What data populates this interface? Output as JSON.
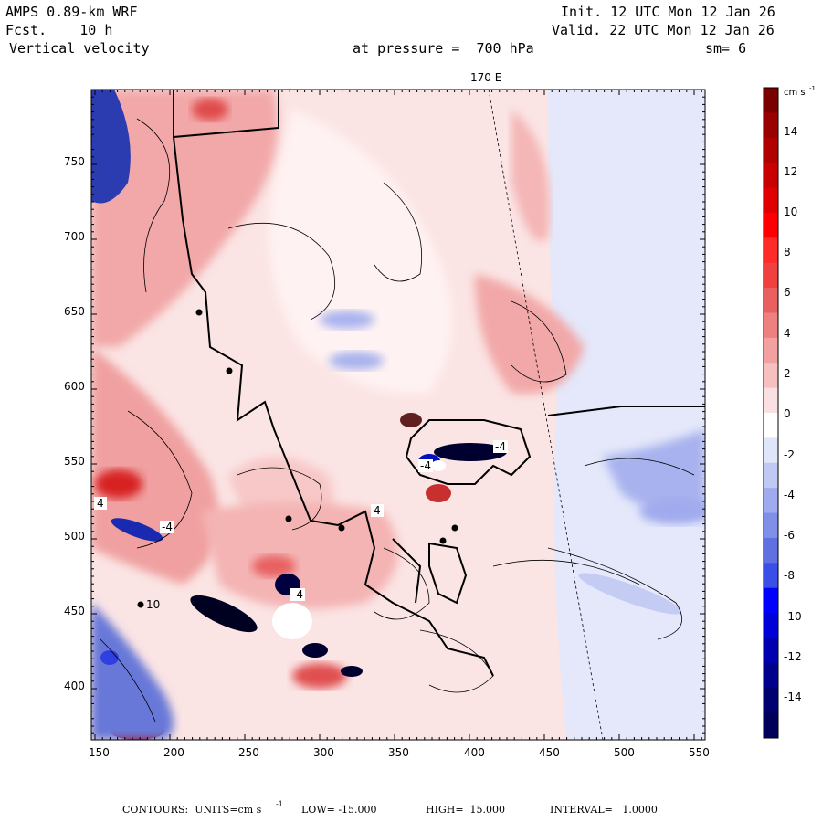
{
  "header": {
    "model": "AMPS 0.89-km WRF",
    "forecast": "Fcst.    10 h",
    "field": "Vertical velocity",
    "init": "Init. 12 UTC Mon 12 Jan 26",
    "valid": "Valid. 22 UTC Mon 12 Jan 26",
    "level": "at pressure =  700 hPa",
    "smoothing": "sm= 6"
  },
  "map": {
    "meridian_label": "170 E",
    "x_ticks": [
      "150",
      "200",
      "250",
      "300",
      "350",
      "400",
      "450",
      "500",
      "550"
    ],
    "y_ticks": [
      "750",
      "700",
      "650",
      "600",
      "550",
      "500",
      "450",
      "400"
    ],
    "contour_labels": [
      "-4",
      "-4",
      "-4",
      "-4",
      "4",
      "4",
      "10"
    ]
  },
  "colorbar": {
    "units": "cm s",
    "units_exp": "-1",
    "labels": [
      "14",
      "12",
      "10",
      "8",
      "6",
      "4",
      "2",
      "0",
      "-2",
      "-4",
      "-6",
      "-8",
      "-10",
      "-12",
      "-14"
    ],
    "colors": [
      "#7a0000",
      "#990000",
      "#b00000",
      "#c80000",
      "#e00000",
      "#ff0000",
      "#ff2a2a",
      "#f04040",
      "#e86060",
      "#ee8080",
      "#f2a0a0",
      "#f6c0c0",
      "#fae0e0",
      "#ffffff",
      "#e0e6fa",
      "#c0c8f4",
      "#a0aaee",
      "#8090e8",
      "#6070e0",
      "#3a4ee8",
      "#0000ff",
      "#0000d8",
      "#0000b0",
      "#00008c",
      "#000070",
      "#00005a"
    ]
  },
  "footer": {
    "contours": "CONTOURS:  UNITS=cm s",
    "units_exp": "-1",
    "low": "LOW= -15.000",
    "high": "HIGH=  15.000",
    "interval": "INTERVAL=   1.0000"
  }
}
